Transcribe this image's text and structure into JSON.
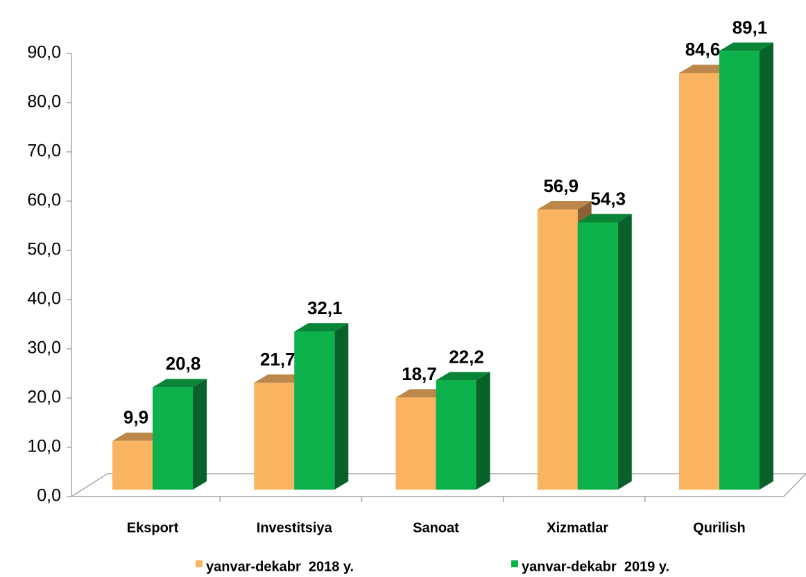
{
  "chart_data": {
    "type": "bar3d",
    "categories": [
      "Eksport",
      "Investitsiya",
      "Sanoat",
      "Xizmatlar",
      "Qurilish"
    ],
    "series": [
      {
        "name": "yanvar-dekabr  2018 y.",
        "color": "#F9B462",
        "values": [
          9.9,
          21.7,
          18.7,
          56.9,
          84.6
        ],
        "value_labels": [
          "9,9",
          "21,7",
          "18,7",
          "56,9",
          "84,6"
        ]
      },
      {
        "name": "yanvar-dekabr  2019 y.",
        "color": "#0DB14B",
        "values": [
          20.8,
          32.1,
          22.2,
          54.3,
          89.1
        ],
        "value_labels": [
          "20,8",
          "32,1",
          "22,2",
          "54,3",
          "89,1"
        ]
      }
    ],
    "ylim": [
      0,
      90
    ],
    "yticks": [
      {
        "value": 0,
        "label": "0,0"
      },
      {
        "value": 10,
        "label": "10,0"
      },
      {
        "value": 20,
        "label": "20,0"
      },
      {
        "value": 30,
        "label": "30,0"
      },
      {
        "value": 40,
        "label": "40,0"
      },
      {
        "value": 50,
        "label": "50,0"
      },
      {
        "value": 60,
        "label": "60,0"
      },
      {
        "value": 70,
        "label": "70,0"
      },
      {
        "value": 80,
        "label": "80,0"
      },
      {
        "value": 90,
        "label": "90,0"
      }
    ],
    "legend": "bottom"
  }
}
